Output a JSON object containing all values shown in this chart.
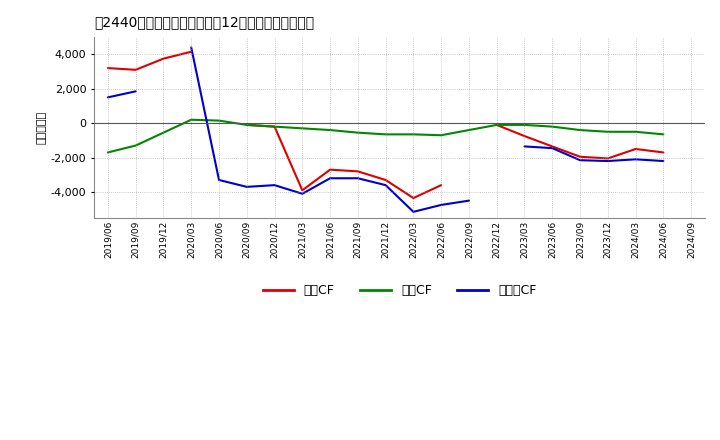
{
  "title": "　2440　キャッシュフローの12か月移動合計の推移",
  "ylabel": "（百万円）",
  "ylim": [
    -5500,
    5000
  ],
  "yticks": [
    -4000,
    -2000,
    0,
    2000,
    4000
  ],
  "background_color": "#ffffff",
  "grid_color": "#aaaaaa",
  "x_labels": [
    "2019/06",
    "2019/09",
    "2019/12",
    "2020/03",
    "2020/06",
    "2020/09",
    "2020/12",
    "2021/03",
    "2021/06",
    "2021/09",
    "2021/12",
    "2022/03",
    "2022/06",
    "2022/09",
    "2022/12",
    "2023/03",
    "2023/06",
    "2023/09",
    "2023/12",
    "2024/03",
    "2024/06",
    "2024/09"
  ],
  "legend_labels": [
    "営業CF",
    "投資CF",
    "フリーCF"
  ],
  "colors": [
    "#dd0000",
    "#008800",
    "#0000cc"
  ],
  "eiyo_cf": [
    3200,
    3100,
    3750,
    4150,
    null,
    -100,
    -200,
    -3900,
    -2700,
    -2800,
    -3300,
    -4350,
    -3600,
    null,
    -100,
    -750,
    -1350,
    -1950,
    -2050,
    -1500,
    -1700,
    null
  ],
  "toshi_cf": [
    -1700,
    -1300,
    -550,
    200,
    150,
    -100,
    -200,
    -300,
    -400,
    -550,
    -650,
    -650,
    -700,
    -400,
    -100,
    -100,
    -200,
    -400,
    -500,
    -500,
    -650,
    null
  ],
  "free_cf": [
    1500,
    1850,
    null,
    4400,
    -3300,
    -3700,
    -3600,
    -4100,
    -3200,
    -3200,
    -3600,
    -5150,
    -4750,
    -4500,
    null,
    -1350,
    -1450,
    -2150,
    -2200,
    -2100,
    -2200,
    null
  ]
}
